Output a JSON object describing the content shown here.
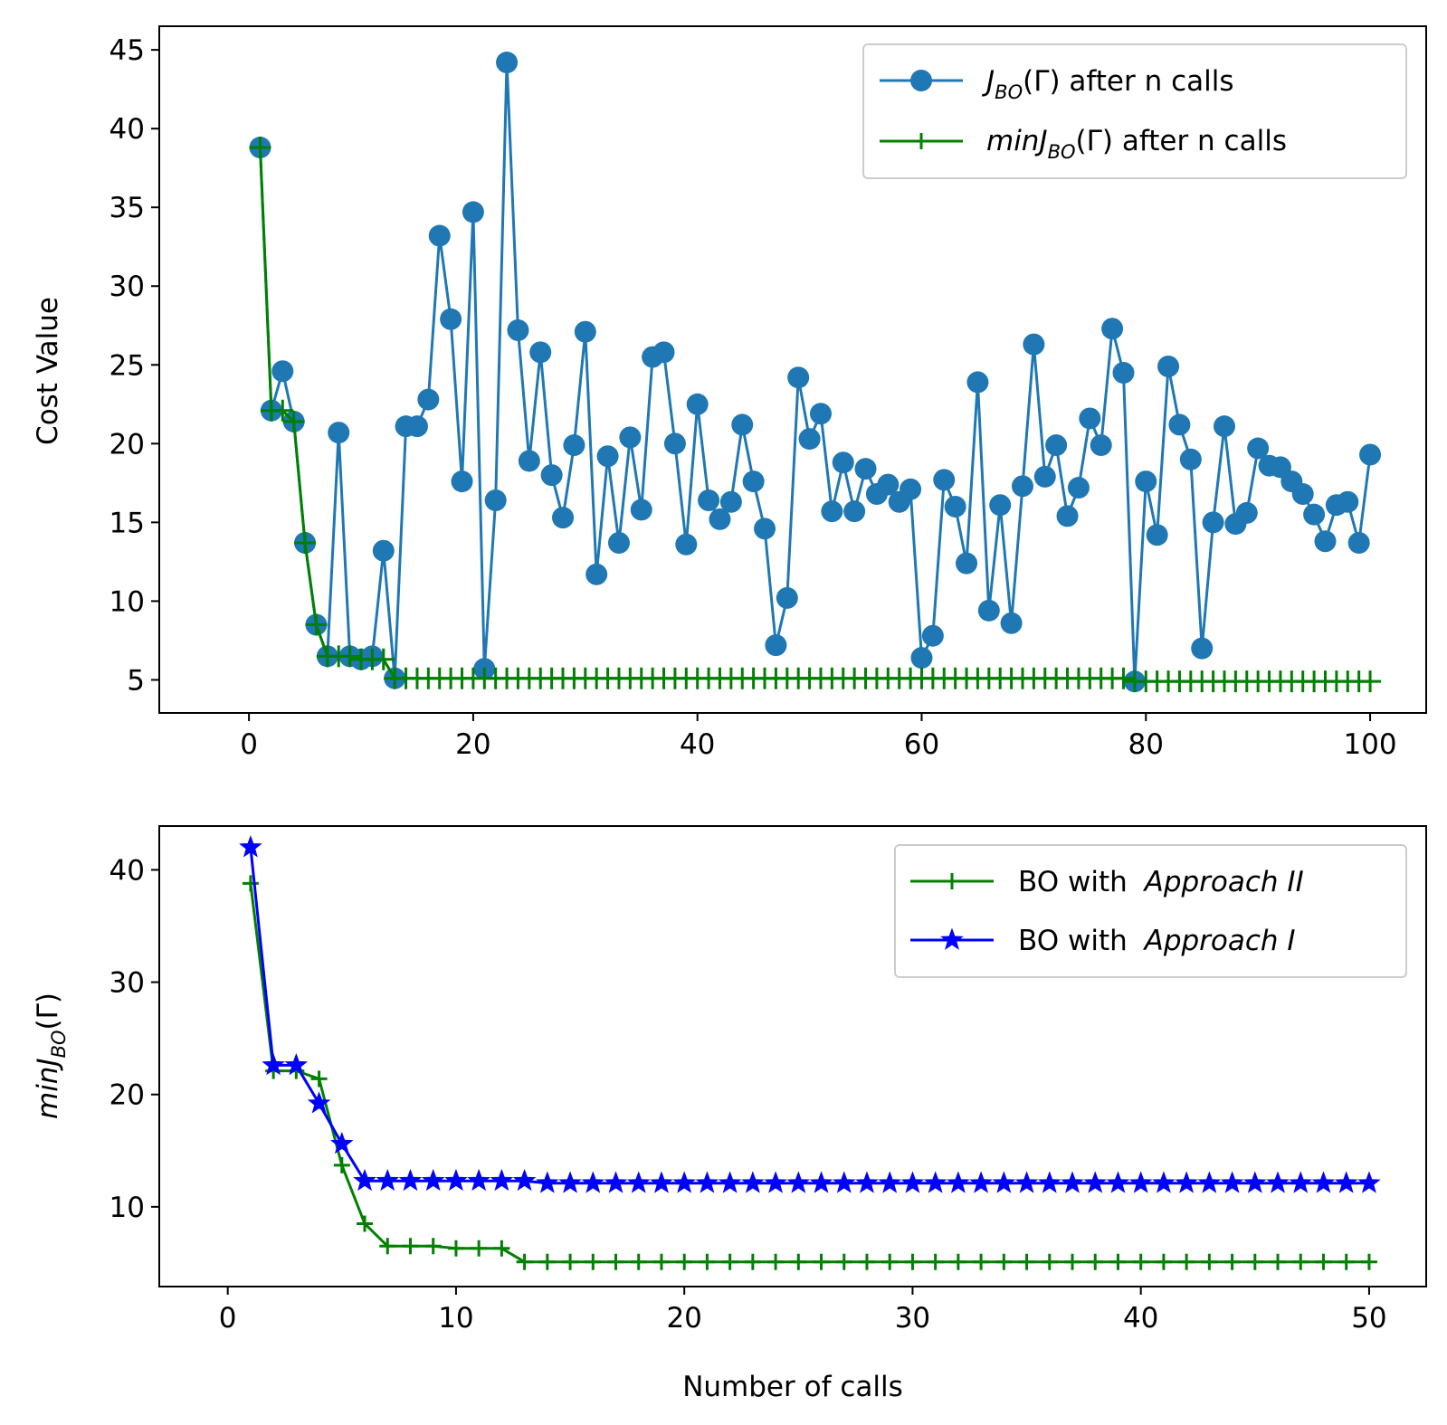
{
  "chart_data": [
    {
      "type": "line",
      "ylabel": "Cost Value",
      "xlabel": "",
      "xlim": [
        -8,
        105
      ],
      "ylim": [
        2.9,
        46.5
      ],
      "xticks": [
        0,
        20,
        40,
        60,
        80,
        100
      ],
      "yticks": [
        5,
        10,
        15,
        20,
        25,
        30,
        35,
        40,
        45
      ],
      "legend_position": "top-right",
      "series": [
        {
          "name": "J_BO(Γ) after n calls",
          "legend": {
            "main": "J",
            "sub": "BO",
            "rest": "(Γ) after n calls"
          },
          "color": "#1f77b4",
          "marker": "circle",
          "x": [
            1,
            2,
            3,
            4,
            5,
            6,
            7,
            8,
            9,
            10,
            11,
            12,
            13,
            14,
            15,
            16,
            17,
            18,
            19,
            20,
            21,
            22,
            23,
            24,
            25,
            26,
            27,
            28,
            29,
            30,
            31,
            32,
            33,
            34,
            35,
            36,
            37,
            38,
            39,
            40,
            41,
            42,
            43,
            44,
            45,
            46,
            47,
            48,
            49,
            50,
            51,
            52,
            53,
            54,
            55,
            56,
            57,
            58,
            59,
            60,
            61,
            62,
            63,
            64,
            65,
            66,
            67,
            68,
            69,
            70,
            71,
            72,
            73,
            74,
            75,
            76,
            77,
            78,
            79,
            80,
            81,
            82,
            83,
            84,
            85,
            86,
            87,
            88,
            89,
            90,
            91,
            92,
            93,
            94,
            95,
            96,
            97,
            98,
            99,
            100
          ],
          "y": [
            38.8,
            22.1,
            24.6,
            21.4,
            13.7,
            8.5,
            6.5,
            20.7,
            6.5,
            6.3,
            6.5,
            13.2,
            5.1,
            21.1,
            21.1,
            22.8,
            33.2,
            27.9,
            17.6,
            34.7,
            5.7,
            16.4,
            44.2,
            27.2,
            18.9,
            25.8,
            18.0,
            15.3,
            19.9,
            27.1,
            11.7,
            19.2,
            13.7,
            20.4,
            15.8,
            25.5,
            25.8,
            20.0,
            13.6,
            22.5,
            16.4,
            15.2,
            16.3,
            21.2,
            17.6,
            14.6,
            7.2,
            10.2,
            24.2,
            20.3,
            21.9,
            15.7,
            18.8,
            15.7,
            18.4,
            16.8,
            17.4,
            16.3,
            17.1,
            6.4,
            7.8,
            17.7,
            16.0,
            12.4,
            23.9,
            9.4,
            16.1,
            8.6,
            17.3,
            26.3,
            17.9,
            19.9,
            15.4,
            17.2,
            21.6,
            19.9,
            27.3,
            24.5,
            4.9,
            17.6,
            14.2,
            24.9,
            21.2,
            19.0,
            7.0,
            15.0,
            21.1,
            14.9,
            15.6,
            19.7,
            18.6,
            18.5,
            17.6,
            16.8,
            15.5,
            13.8,
            16.1,
            16.3,
            13.7,
            19.3
          ]
        },
        {
          "name": "minJ_BO(Γ) after n calls",
          "legend": {
            "main": "minJ",
            "sub": "BO",
            "rest": "(Γ) after n calls"
          },
          "color": "#008000",
          "marker": "plus",
          "x": [
            1,
            2,
            3,
            4,
            5,
            6,
            7,
            8,
            9,
            10,
            11,
            12,
            13,
            14,
            15,
            16,
            17,
            18,
            19,
            20,
            21,
            22,
            23,
            24,
            25,
            26,
            27,
            28,
            29,
            30,
            31,
            32,
            33,
            34,
            35,
            36,
            37,
            38,
            39,
            40,
            41,
            42,
            43,
            44,
            45,
            46,
            47,
            48,
            49,
            50,
            51,
            52,
            53,
            54,
            55,
            56,
            57,
            58,
            59,
            60,
            61,
            62,
            63,
            64,
            65,
            66,
            67,
            68,
            69,
            70,
            71,
            72,
            73,
            74,
            75,
            76,
            77,
            78,
            79,
            80,
            81,
            82,
            83,
            84,
            85,
            86,
            87,
            88,
            89,
            90,
            91,
            92,
            93,
            94,
            95,
            96,
            97,
            98,
            99,
            100
          ],
          "y": [
            38.8,
            22.1,
            22.1,
            21.4,
            13.7,
            8.5,
            6.5,
            6.5,
            6.5,
            6.3,
            6.3,
            6.3,
            5.1,
            5.1,
            5.1,
            5.1,
            5.1,
            5.1,
            5.1,
            5.1,
            5.1,
            5.1,
            5.1,
            5.1,
            5.1,
            5.1,
            5.1,
            5.1,
            5.1,
            5.1,
            5.1,
            5.1,
            5.1,
            5.1,
            5.1,
            5.1,
            5.1,
            5.1,
            5.1,
            5.1,
            5.1,
            5.1,
            5.1,
            5.1,
            5.1,
            5.1,
            5.1,
            5.1,
            5.1,
            5.1,
            5.1,
            5.1,
            5.1,
            5.1,
            5.1,
            5.1,
            5.1,
            5.1,
            5.1,
            5.1,
            5.1,
            5.1,
            5.1,
            5.1,
            5.1,
            5.1,
            5.1,
            5.1,
            5.1,
            5.1,
            5.1,
            5.1,
            5.1,
            5.1,
            5.1,
            5.1,
            5.1,
            5.1,
            4.9,
            4.9,
            4.9,
            4.9,
            4.9,
            4.9,
            4.9,
            4.9,
            4.9,
            4.9,
            4.9,
            4.9,
            4.9,
            4.9,
            4.9,
            4.9,
            4.9,
            4.9,
            4.9,
            4.9,
            4.9,
            4.9
          ]
        }
      ]
    },
    {
      "type": "line",
      "ylabel": {
        "main": "minJ",
        "sub": "BO",
        "rest": "(Γ)"
      },
      "xlabel": "Number of calls",
      "xlim": [
        -3,
        52.5
      ],
      "ylim": [
        2.9,
        43.9
      ],
      "xticks": [
        0,
        10,
        20,
        30,
        40,
        50
      ],
      "yticks": [
        10,
        20,
        30,
        40
      ],
      "legend_position": "top-right",
      "series": [
        {
          "name": "BO with Approach II",
          "legend": {
            "main": "BO with ",
            "italic": "Approach II"
          },
          "color": "#008000",
          "marker": "plus",
          "x": [
            1,
            2,
            3,
            4,
            5,
            6,
            7,
            8,
            9,
            10,
            11,
            12,
            13,
            14,
            15,
            16,
            17,
            18,
            19,
            20,
            21,
            22,
            23,
            24,
            25,
            26,
            27,
            28,
            29,
            30,
            31,
            32,
            33,
            34,
            35,
            36,
            37,
            38,
            39,
            40,
            41,
            42,
            43,
            44,
            45,
            46,
            47,
            48,
            49,
            50
          ],
          "y": [
            38.8,
            22.1,
            22.1,
            21.4,
            13.7,
            8.5,
            6.5,
            6.5,
            6.5,
            6.3,
            6.3,
            6.3,
            5.1,
            5.1,
            5.1,
            5.1,
            5.1,
            5.1,
            5.1,
            5.1,
            5.1,
            5.1,
            5.1,
            5.1,
            5.1,
            5.1,
            5.1,
            5.1,
            5.1,
            5.1,
            5.1,
            5.1,
            5.1,
            5.1,
            5.1,
            5.1,
            5.1,
            5.1,
            5.1,
            5.1,
            5.1,
            5.1,
            5.1,
            5.1,
            5.1,
            5.1,
            5.1,
            5.1,
            5.1,
            5.1
          ]
        },
        {
          "name": "BO with Approach I",
          "legend": {
            "main": "BO with ",
            "italic": "Approach I"
          },
          "color": "#0000ff",
          "marker": "star",
          "x": [
            1,
            2,
            3,
            4,
            5,
            6,
            7,
            8,
            9,
            10,
            11,
            12,
            13,
            14,
            15,
            16,
            17,
            18,
            19,
            20,
            21,
            22,
            23,
            24,
            25,
            26,
            27,
            28,
            29,
            30,
            31,
            32,
            33,
            34,
            35,
            36,
            37,
            38,
            39,
            40,
            41,
            42,
            43,
            44,
            45,
            46,
            47,
            48,
            49,
            50
          ],
          "y": [
            42.0,
            22.6,
            22.6,
            19.2,
            15.6,
            12.3,
            12.3,
            12.3,
            12.3,
            12.3,
            12.3,
            12.3,
            12.3,
            12.1,
            12.1,
            12.1,
            12.1,
            12.1,
            12.1,
            12.1,
            12.1,
            12.1,
            12.1,
            12.1,
            12.1,
            12.1,
            12.1,
            12.1,
            12.1,
            12.1,
            12.1,
            12.1,
            12.1,
            12.1,
            12.1,
            12.1,
            12.1,
            12.1,
            12.1,
            12.1,
            12.1,
            12.1,
            12.1,
            12.1,
            12.1,
            12.1,
            12.1,
            12.1,
            12.1,
            12.1
          ]
        }
      ]
    }
  ]
}
